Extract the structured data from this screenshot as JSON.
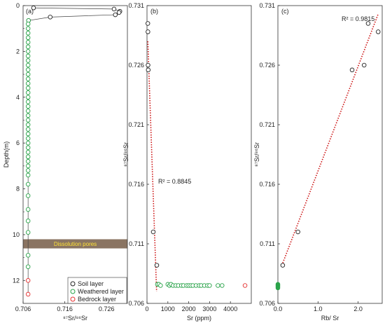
{
  "colors": {
    "soil": "#222222",
    "weathered": "#2aa34a",
    "bedrock": "#e53030",
    "trend": "#cc1111",
    "band": "#8a7462",
    "band_text": "#ffe234"
  },
  "chart_data": [
    {
      "type": "line",
      "panel_label": "(a)",
      "xlabel": "⁸⁷Sr/⁸⁶Sr",
      "ylabel": "Depth(m)",
      "xlim": [
        0.706,
        0.731
      ],
      "ylim": [
        0,
        13
      ],
      "x_ticks": [
        0.706,
        0.716,
        0.726
      ],
      "y_ticks": [
        0,
        2,
        4,
        6,
        8,
        10,
        12
      ],
      "y_inverted": true,
      "annotation": "Dissolution pores",
      "band_depth_range": [
        10.2,
        10.6
      ],
      "legend_position": "bottom-right",
      "series": [
        {
          "name": "Soil layer",
          "marker": "circle",
          "color": "#222222",
          "points": [
            [
              0.7085,
              0.1
            ],
            [
              0.7278,
              0.15
            ],
            [
              0.7292,
              0.25
            ],
            [
              0.729,
              0.3
            ],
            [
              0.7281,
              0.4
            ],
            [
              0.7125,
              0.5
            ],
            [
              0.7073,
              0.65
            ]
          ]
        },
        {
          "name": "Weathered layer",
          "marker": "circle",
          "color": "#2aa34a",
          "points": [
            [
              0.7073,
              0.65
            ],
            [
              0.7072,
              0.8
            ],
            [
              0.7072,
              1.0
            ],
            [
              0.7072,
              1.2
            ],
            [
              0.7072,
              1.4
            ],
            [
              0.7072,
              1.6
            ],
            [
              0.7072,
              1.8
            ],
            [
              0.7072,
              2.0
            ],
            [
              0.7072,
              2.2
            ],
            [
              0.7072,
              2.4
            ],
            [
              0.7072,
              2.6
            ],
            [
              0.7072,
              2.8
            ],
            [
              0.7072,
              3.0
            ],
            [
              0.7072,
              3.2
            ],
            [
              0.7072,
              3.4
            ],
            [
              0.7072,
              3.6
            ],
            [
              0.7072,
              3.8
            ],
            [
              0.7072,
              4.0
            ],
            [
              0.7072,
              4.2
            ],
            [
              0.7072,
              4.4
            ],
            [
              0.7072,
              4.6
            ],
            [
              0.7072,
              4.8
            ],
            [
              0.7072,
              5.0
            ],
            [
              0.7072,
              5.2
            ],
            [
              0.7072,
              5.4
            ],
            [
              0.7072,
              5.6
            ],
            [
              0.7072,
              5.8
            ],
            [
              0.7072,
              6.0
            ],
            [
              0.7072,
              6.2
            ],
            [
              0.7072,
              6.4
            ],
            [
              0.7072,
              6.6
            ],
            [
              0.7072,
              6.8
            ],
            [
              0.7072,
              7.0
            ],
            [
              0.7072,
              7.2
            ],
            [
              0.7072,
              7.4
            ],
            [
              0.7072,
              7.8
            ],
            [
              0.7072,
              8.3
            ],
            [
              0.7072,
              8.9
            ],
            [
              0.7072,
              9.4
            ],
            [
              0.7072,
              9.9
            ],
            [
              0.7072,
              10.9
            ],
            [
              0.7072,
              11.4
            ]
          ]
        },
        {
          "name": "Bedrock layer",
          "marker": "circle",
          "color": "#e53030",
          "points": [
            [
              0.7072,
              12.0
            ],
            [
              0.7072,
              12.6
            ]
          ]
        }
      ]
    },
    {
      "type": "scatter",
      "panel_label": "(b)",
      "xlabel": "Sr (ppm)",
      "ylabel": "⁸⁷Sr/⁸⁶Sr",
      "xlim": [
        0,
        5000
      ],
      "ylim": [
        0.706,
        0.731
      ],
      "x_ticks": [
        0,
        1000,
        2000,
        3000,
        4000
      ],
      "y_ticks": [
        0.706,
        0.711,
        0.716,
        0.721,
        0.726,
        0.731
      ],
      "annotation": "R² = 0.8845",
      "trendline": {
        "from": [
          40,
          0.728
        ],
        "to": [
          460,
          0.707
        ]
      },
      "series": [
        {
          "name": "Soil layer",
          "color": "#222222",
          "points": [
            [
              40,
              0.7295
            ],
            [
              45,
              0.7288
            ],
            [
              50,
              0.726
            ],
            [
              60,
              0.7256
            ],
            [
              300,
              0.712
            ],
            [
              470,
              0.7092
            ]
          ]
        },
        {
          "name": "Weathered layer",
          "color": "#2aa34a",
          "points": [
            [
              500,
              0.7076
            ],
            [
              570,
              0.7076
            ],
            [
              650,
              0.7075
            ],
            [
              1000,
              0.7076
            ],
            [
              1080,
              0.7075
            ],
            [
              1150,
              0.7076
            ],
            [
              1250,
              0.7075
            ],
            [
              1380,
              0.7075
            ],
            [
              1500,
              0.7075
            ],
            [
              1650,
              0.7075
            ],
            [
              1750,
              0.7075
            ],
            [
              1900,
              0.7075
            ],
            [
              2000,
              0.7075
            ],
            [
              2100,
              0.7075
            ],
            [
              2200,
              0.7075
            ],
            [
              2350,
              0.7075
            ],
            [
              2500,
              0.7075
            ],
            [
              2600,
              0.7075
            ],
            [
              2750,
              0.7075
            ],
            [
              2900,
              0.7075
            ],
            [
              3000,
              0.7075
            ],
            [
              3400,
              0.7075
            ],
            [
              3600,
              0.7075
            ]
          ]
        },
        {
          "name": "Bedrock layer",
          "color": "#e53030",
          "points": [
            [
              4700,
              0.7075
            ]
          ]
        }
      ]
    },
    {
      "type": "scatter",
      "panel_label": "(c)",
      "xlabel": "Rb/ Sr",
      "ylabel": "⁸⁷Sr/⁸⁶Sr",
      "xlim": [
        0,
        2.6
      ],
      "ylim": [
        0.706,
        0.731
      ],
      "x_ticks": [
        0.0,
        1.0,
        2.0
      ],
      "x_tick_labels": [
        "0.0",
        "1.0",
        "2.0"
      ],
      "y_ticks": [
        0.706,
        0.711,
        0.716,
        0.721,
        0.726,
        0.731
      ],
      "annotation": "R² = 0.9815",
      "trendline": {
        "from": [
          0.1,
          0.7092
        ],
        "to": [
          2.5,
          0.7303
        ]
      },
      "series": [
        {
          "name": "Soil layer",
          "color": "#222222",
          "points": [
            [
              0.12,
              0.7092
            ],
            [
              0.5,
              0.712
            ],
            [
              1.85,
              0.7256
            ],
            [
              2.15,
              0.726
            ],
            [
              2.25,
              0.7295
            ],
            [
              2.5,
              0.7288
            ]
          ]
        },
        {
          "name": "Weathered layer",
          "color": "#2aa34a",
          "filled": true,
          "points": [
            [
              0.0,
              0.7076
            ],
            [
              0.0,
              0.7075
            ],
            [
              0.0,
              0.7074
            ],
            [
              0.0,
              0.7073
            ]
          ]
        }
      ]
    }
  ]
}
